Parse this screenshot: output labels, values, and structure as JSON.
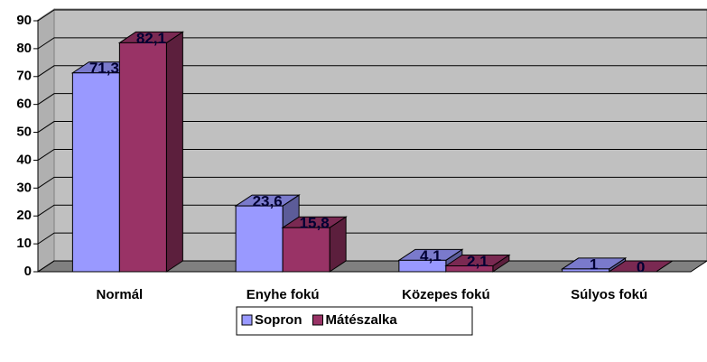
{
  "chart_data": {
    "type": "bar3d",
    "categories": [
      "Normál",
      "Enyhe fokú",
      "Közepes fokú",
      "Súlyos fokú"
    ],
    "series": [
      {
        "name": "Sopron",
        "color": "#9999ff",
        "values": [
          71.3,
          23.6,
          4.1,
          1
        ],
        "value_labels": [
          "71,3",
          "23,6",
          "4,1",
          "1"
        ]
      },
      {
        "name": "Mátészalka",
        "color": "#993366",
        "values": [
          82.1,
          15.8,
          2.1,
          0
        ],
        "value_labels": [
          "82,1",
          "15,8",
          "2,1",
          "0"
        ]
      }
    ],
    "ylim": [
      0,
      90
    ],
    "yticks": [
      0,
      10,
      20,
      30,
      40,
      50,
      60,
      70,
      80,
      90
    ],
    "grid": true,
    "legend": "bottom"
  }
}
